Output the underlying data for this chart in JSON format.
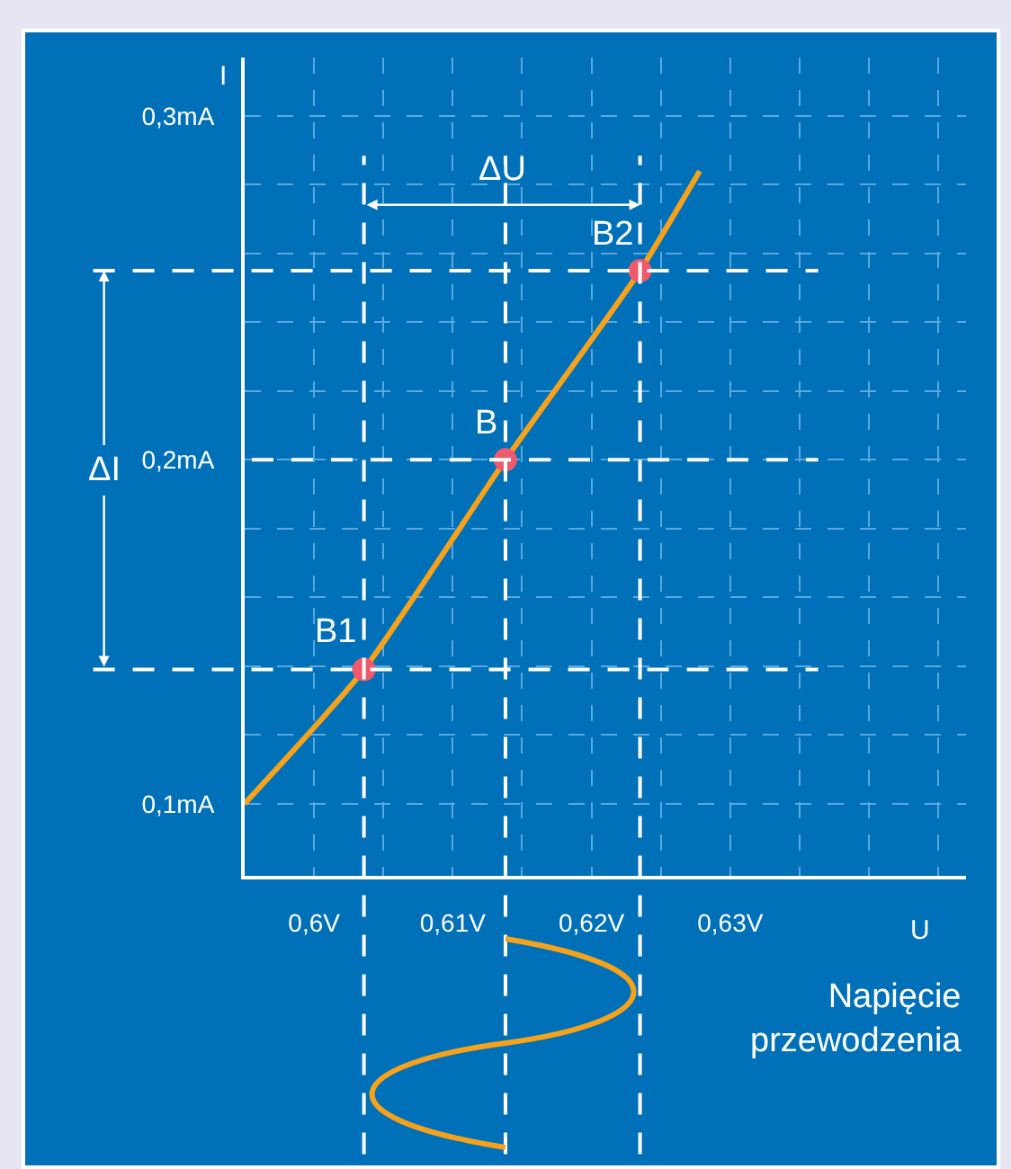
{
  "chart_data": {
    "type": "line",
    "xlabel": "U",
    "ylabel": "I",
    "xlim": [
      0.595,
      0.647
    ],
    "ylim": [
      0.079,
      0.317
    ],
    "xticks": [
      {
        "value": 0.6,
        "label": "0,6V"
      },
      {
        "value": 0.605,
        "label": null
      },
      {
        "value": 0.61,
        "label": "0,61V"
      },
      {
        "value": 0.615,
        "label": null
      },
      {
        "value": 0.62,
        "label": "0,62V"
      },
      {
        "value": 0.625,
        "label": null
      },
      {
        "value": 0.63,
        "label": "0,63V"
      },
      {
        "value": 0.635,
        "label": null
      },
      {
        "value": 0.64,
        "label": null
      },
      {
        "value": 0.645,
        "label": null
      }
    ],
    "yticks": [
      {
        "value": 0.1,
        "label": "0,1mA"
      },
      {
        "value": 0.12,
        "label": null
      },
      {
        "value": 0.14,
        "label": null
      },
      {
        "value": 0.16,
        "label": null
      },
      {
        "value": 0.18,
        "label": null
      },
      {
        "value": 0.2,
        "label": "0,2mA"
      },
      {
        "value": 0.22,
        "label": null
      },
      {
        "value": 0.24,
        "label": null
      },
      {
        "value": 0.26,
        "label": null
      },
      {
        "value": 0.28,
        "label": null
      },
      {
        "value": 0.3,
        "label": "0,3mA"
      }
    ],
    "grid": true,
    "marker": "none",
    "line_style": "solid",
    "series": [
      {
        "color": "#f7a21b",
        "x": [
          0.595,
          0.6036,
          0.6138,
          0.6235,
          0.6278
        ],
        "values": [
          0.1,
          0.139,
          0.2,
          0.255,
          0.284
        ]
      },
      {
        "type": "scatter",
        "marker": "circle",
        "color": "#ee5a6c",
        "x": [
          0.6036,
          0.6138,
          0.6235
        ],
        "values": [
          0.139,
          0.2,
          0.255
        ]
      }
    ],
    "ref_lines": [
      {
        "axis": "x",
        "value": 0.6036,
        "color": "#ffffff",
        "line_style": "dashed"
      },
      {
        "axis": "x",
        "value": 0.6138,
        "color": "#ffffff",
        "line_style": "dashed"
      },
      {
        "axis": "x",
        "value": 0.6235,
        "color": "#ffffff",
        "line_style": "dashed"
      },
      {
        "axis": "y",
        "value": 0.139,
        "color": "#ffffff",
        "line_style": "dashed"
      },
      {
        "axis": "y",
        "value": 0.2,
        "color": "#ffffff",
        "line_style": "dashed"
      },
      {
        "axis": "y",
        "value": 0.255,
        "color": "#ffffff",
        "line_style": "dashed"
      }
    ],
    "annotations": [
      {
        "text": "B1",
        "x": 0.6036,
        "y": 0.139
      },
      {
        "text": "B",
        "x": 0.6138,
        "y": 0.2
      },
      {
        "text": "B2",
        "x": 0.6235,
        "y": 0.255
      },
      "ΔU",
      "ΔI",
      "Napięcie przewodzenia"
    ]
  }
}
